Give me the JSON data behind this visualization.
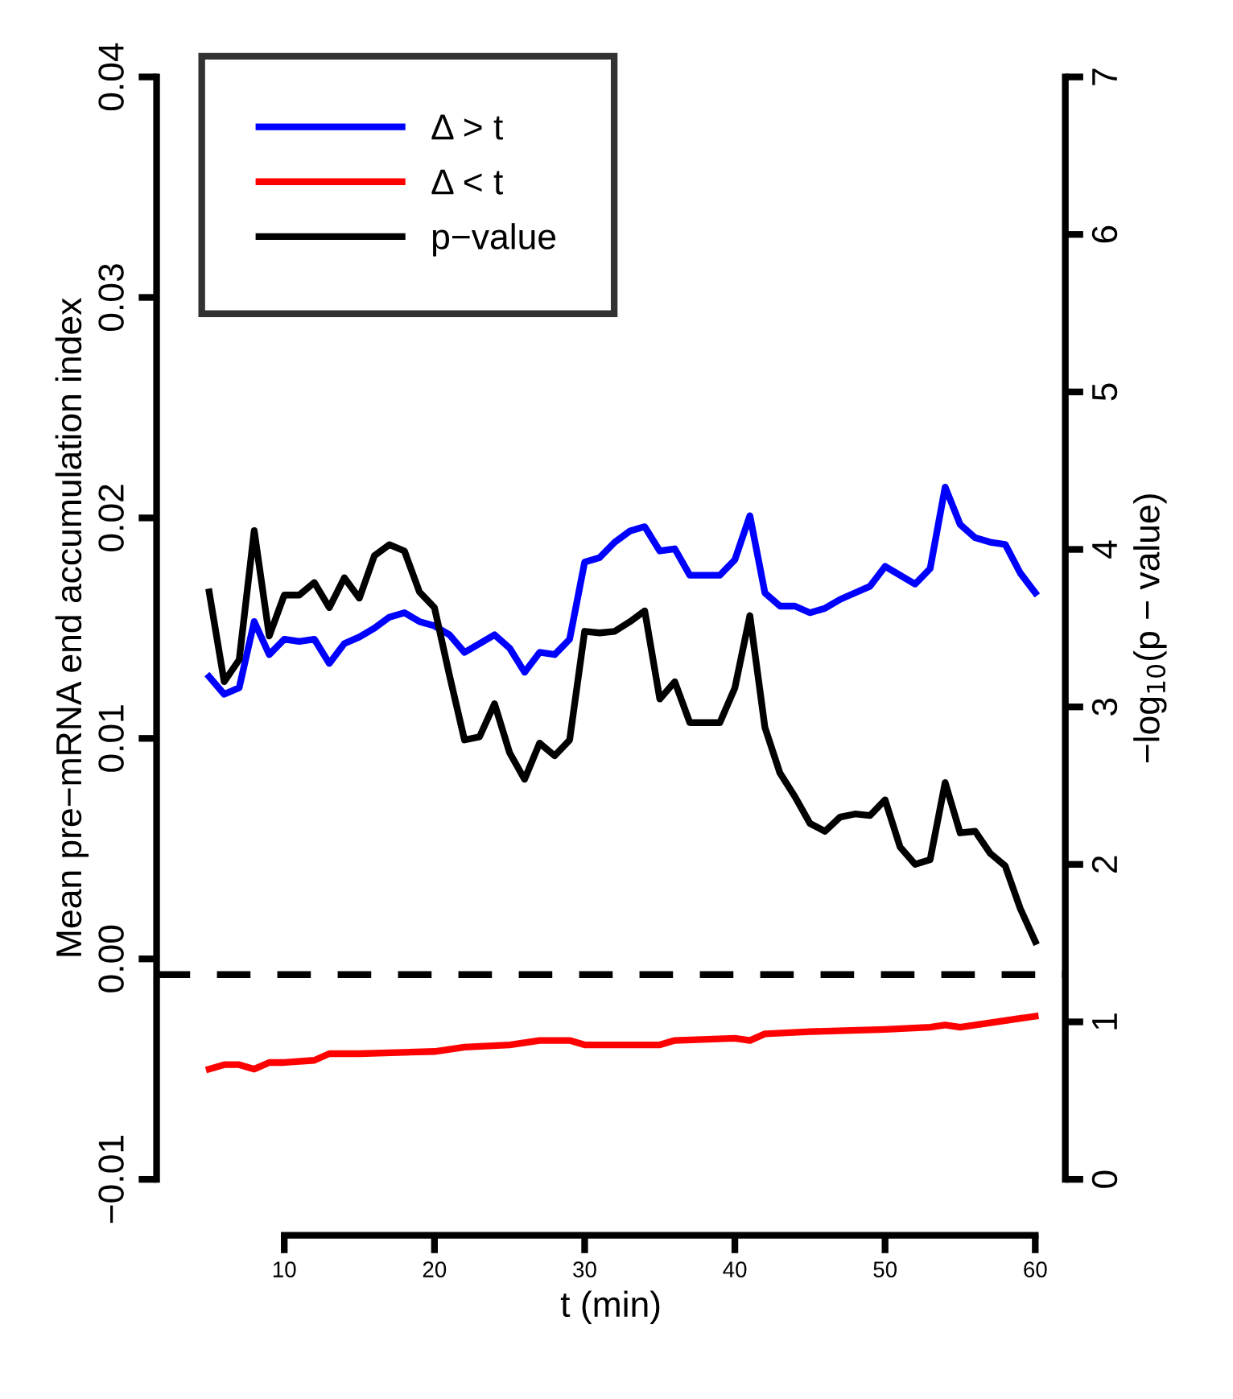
{
  "chart_data": {
    "type": "line",
    "xlabel": "t (min)",
    "ylabel": "Mean pre−mRNA end accumulation index",
    "y2label": "−log$_{10}$(p − value)",
    "xlim": [
      1.5,
      62
    ],
    "xticks": [
      10,
      20,
      30,
      40,
      50,
      60
    ],
    "ylim": [
      -0.01,
      0.04
    ],
    "yticks": [
      {
        "value": -0.01,
        "label": "−0.01"
      },
      {
        "value": 0,
        "label": "0.00"
      },
      {
        "value": 0.01,
        "label": "0.01"
      },
      {
        "value": 0.02,
        "label": "0.02"
      },
      {
        "value": 0.03,
        "label": "0.03"
      },
      {
        "value": 0.04,
        "label": "0.04"
      }
    ],
    "y2lim": [
      0,
      7
    ],
    "y2ticks": [
      0,
      1,
      2,
      3,
      4,
      5,
      6,
      7
    ],
    "legend": "top left",
    "grid": false,
    "marker": "none",
    "line_style": "solid",
    "ref_lines": [
      {
        "axis": "y2",
        "value": 1.3,
        "color": "#000000",
        "line_style": "dashed"
      }
    ],
    "series": [
      {
        "name": "Δ > t",
        "color": "#0000ff",
        "x": [
          5,
          6,
          7,
          8,
          9,
          10,
          11,
          12,
          13,
          14,
          15,
          16,
          17,
          18,
          19,
          20,
          21,
          22,
          23,
          24,
          25,
          26,
          27,
          28,
          29,
          30,
          31,
          32,
          33,
          34,
          35,
          36,
          37,
          38,
          39,
          40,
          41,
          42,
          43,
          44,
          45,
          46,
          47,
          48,
          49,
          50,
          51,
          52,
          53,
          54,
          55,
          56,
          57,
          58,
          59,
          60
        ],
        "values": [
          0.0128,
          0.012,
          0.0123,
          0.0153,
          0.0138,
          0.0145,
          0.0144,
          0.0145,
          0.0134,
          0.0143,
          0.0146,
          0.015,
          0.0155,
          0.0157,
          0.0153,
          0.0151,
          0.0147,
          0.0139,
          0.0143,
          0.0147,
          0.0141,
          0.013,
          0.0139,
          0.0138,
          0.0145,
          0.018,
          0.0182,
          0.0189,
          0.0194,
          0.0196,
          0.0185,
          0.0186,
          0.0174,
          0.0174,
          0.0174,
          0.0181,
          0.0201,
          0.0166,
          0.016,
          0.016,
          0.0157,
          0.0159,
          0.0163,
          0.0166,
          0.0169,
          0.0178,
          0.0174,
          0.017,
          0.0177,
          0.0214,
          0.0197,
          0.0191,
          0.0189,
          0.0188,
          0.0175,
          0.0166
        ]
      },
      {
        "name": "Δ < t",
        "color": "#ff0000",
        "x": [
          5,
          6,
          7,
          8,
          9,
          10,
          12,
          13,
          15,
          20,
          22,
          25,
          27,
          29,
          30,
          35,
          36,
          40,
          41,
          42,
          45,
          50,
          53,
          54,
          55,
          60
        ],
        "values": [
          -0.005,
          -0.0048,
          -0.0048,
          -0.005,
          -0.0047,
          -0.0047,
          -0.0046,
          -0.0043,
          -0.0043,
          -0.0042,
          -0.004,
          -0.0039,
          -0.0037,
          -0.0037,
          -0.0039,
          -0.0039,
          -0.0037,
          -0.0036,
          -0.0037,
          -0.0034,
          -0.0033,
          -0.0032,
          -0.0031,
          -0.003,
          -0.0031,
          -0.0026
        ]
      },
      {
        "name": "p−value",
        "color": "#000000",
        "axis": "y2",
        "x": [
          5,
          6,
          7,
          8,
          9,
          10,
          11,
          12,
          13,
          14,
          15,
          16,
          17,
          18,
          19,
          20,
          21,
          22,
          23,
          24,
          25,
          26,
          27,
          28,
          29,
          30,
          31,
          32,
          33,
          34,
          35,
          36,
          37,
          38,
          39,
          40,
          41,
          42,
          43,
          44,
          45,
          46,
          47,
          48,
          49,
          50,
          51,
          52,
          53,
          54,
          55,
          56,
          57,
          58,
          59,
          60
        ],
        "values": [
          3.73,
          3.16,
          3.3,
          4.12,
          3.45,
          3.71,
          3.71,
          3.79,
          3.63,
          3.82,
          3.69,
          3.96,
          4.03,
          3.99,
          3.73,
          3.63,
          3.2,
          2.79,
          2.81,
          3.02,
          2.71,
          2.54,
          2.77,
          2.69,
          2.79,
          3.48,
          3.47,
          3.48,
          3.54,
          3.61,
          3.05,
          3.16,
          2.9,
          2.9,
          2.9,
          3.12,
          3.58,
          2.87,
          2.58,
          2.43,
          2.26,
          2.21,
          2.3,
          2.32,
          2.31,
          2.41,
          2.11,
          2.0,
          2.03,
          2.52,
          2.2,
          2.21,
          2.07,
          1.99,
          1.72,
          1.51
        ]
      }
    ]
  }
}
